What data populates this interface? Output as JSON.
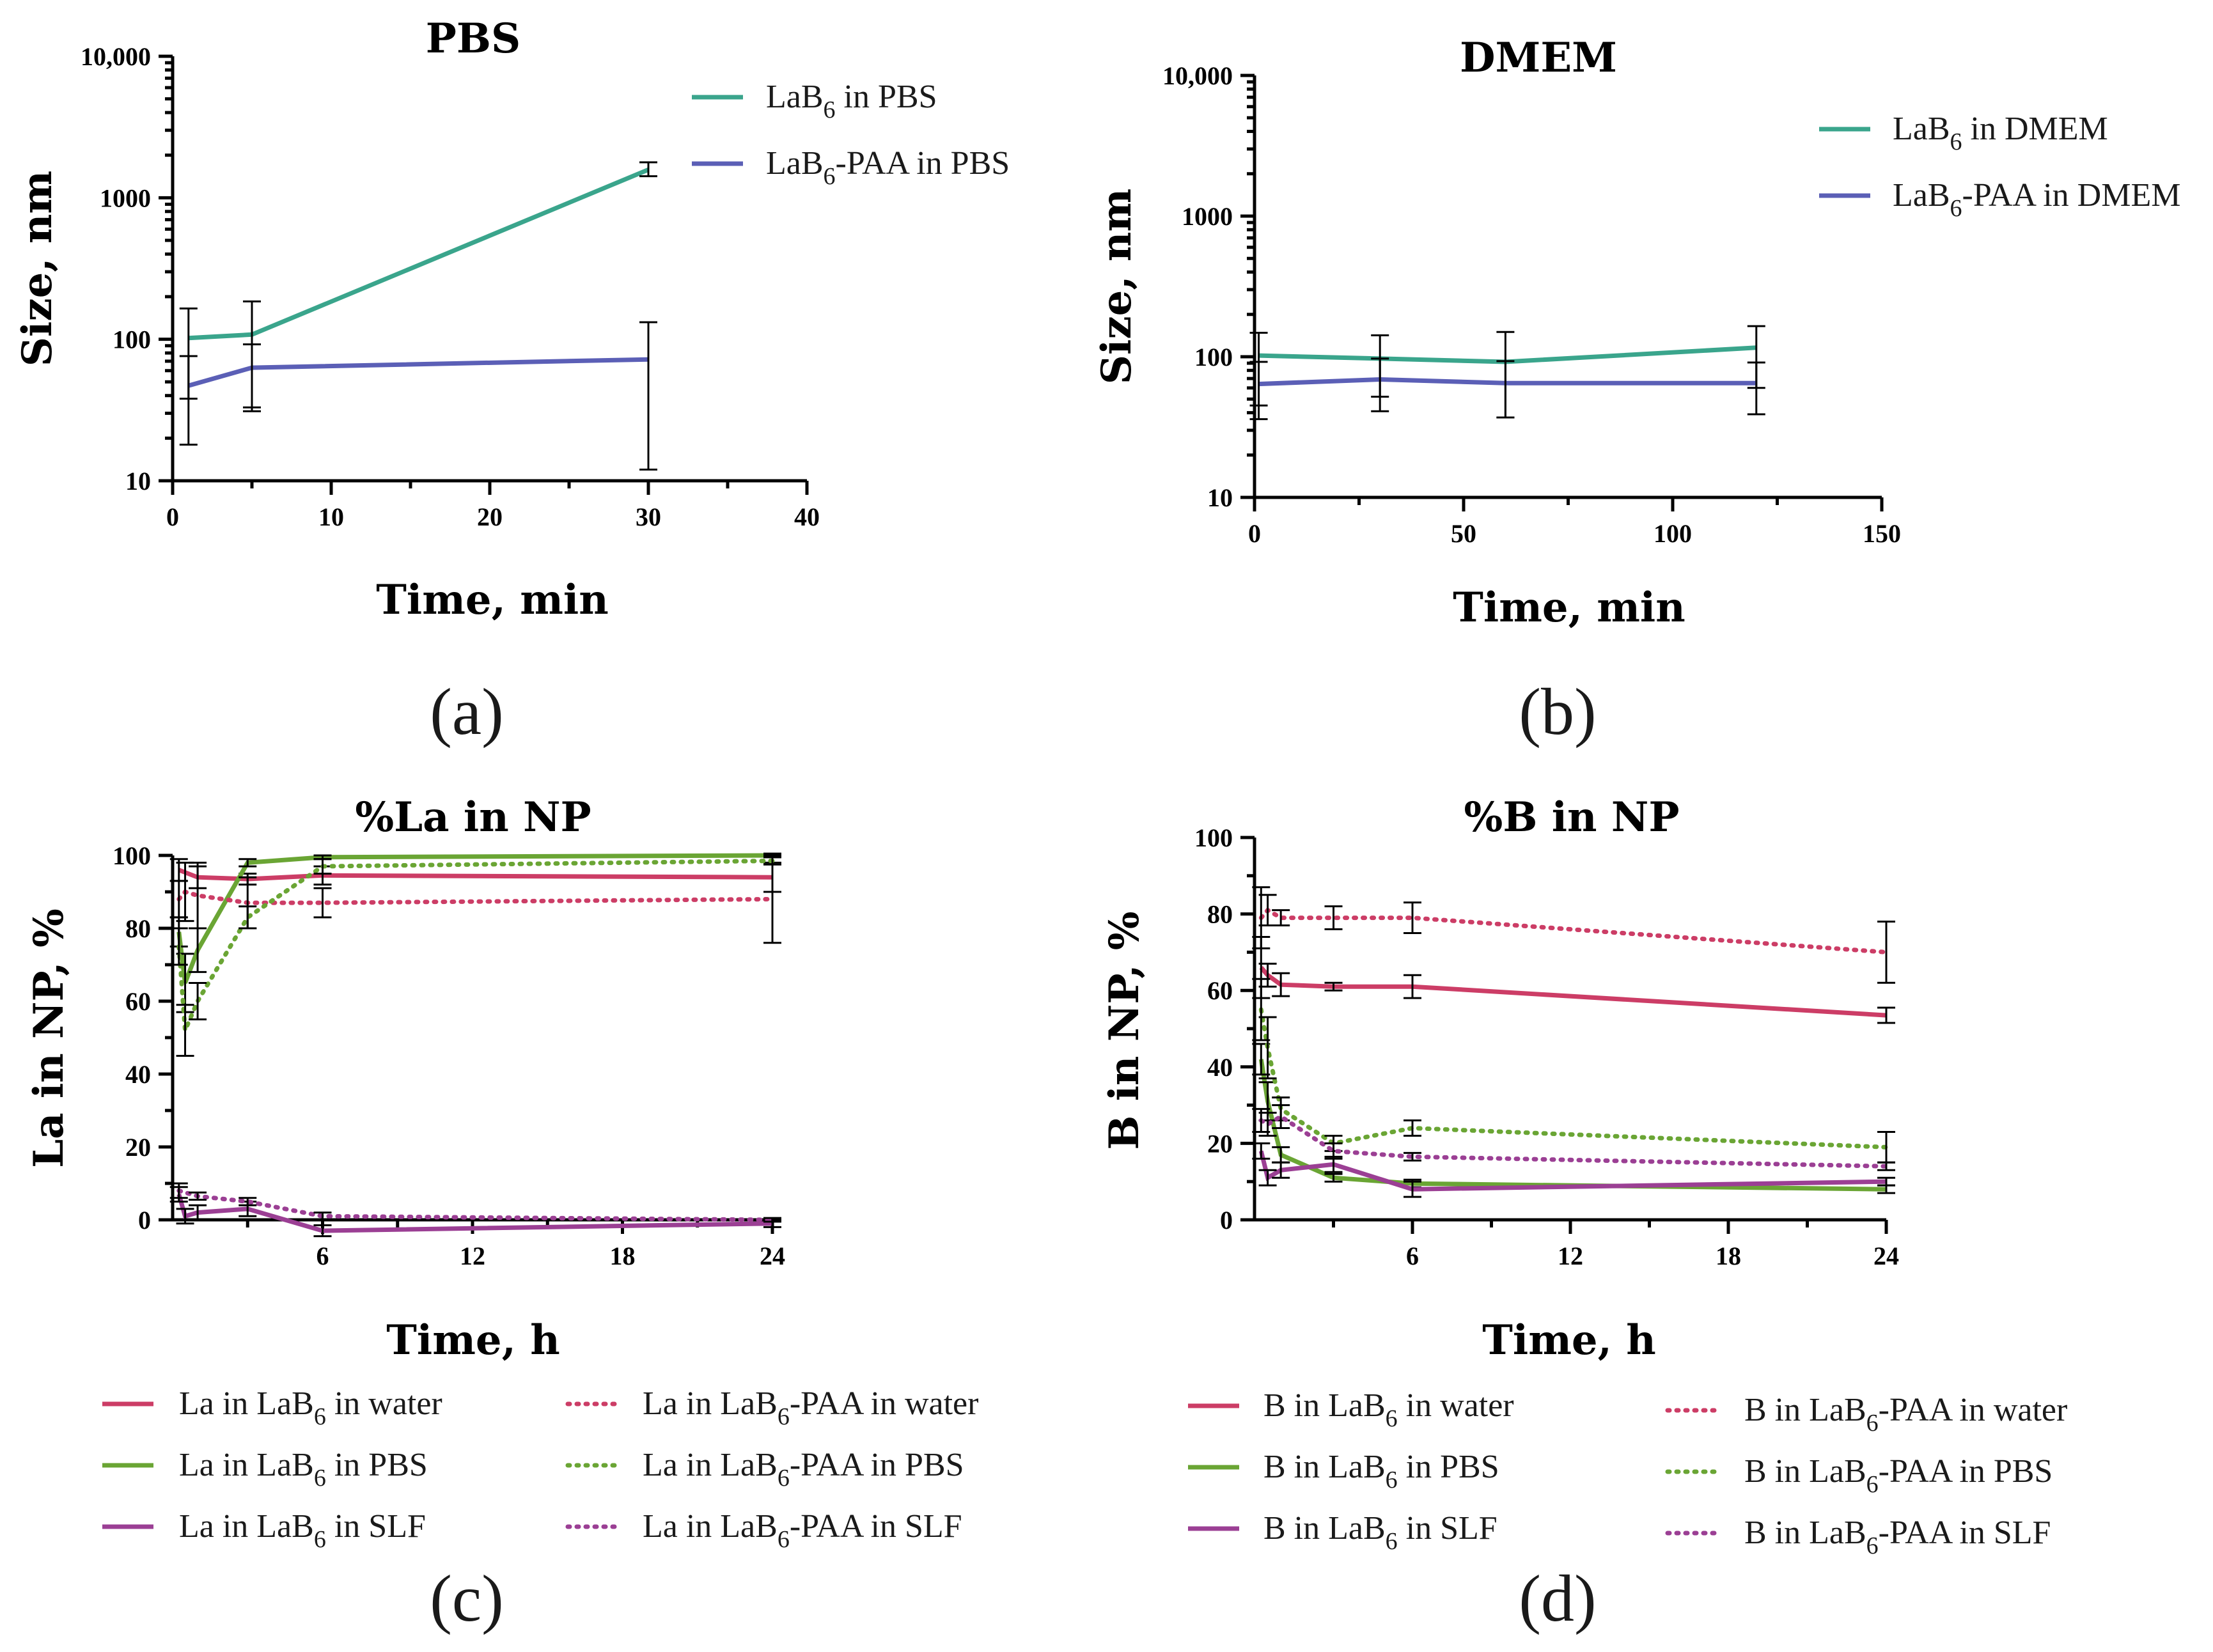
{
  "colors": {
    "teal": "#3aa58c",
    "blue": "#5b5fb6",
    "crimson": "#cc3d66",
    "green": "#6aa534",
    "purple": "#9b3f94",
    "axis": "#000000"
  },
  "chart_data": [
    {
      "id": "a",
      "type": "line",
      "panel_label": "(a)",
      "title": "PBS",
      "xlabel": "Time, min",
      "ylabel": "Size, nm",
      "yscale": "log",
      "xlim": [
        0,
        40
      ],
      "ylim": [
        10,
        10000
      ],
      "xticks": [
        0,
        10,
        20,
        30,
        40
      ],
      "xtick_labels": [
        "0",
        "10",
        "20",
        "30",
        "40"
      ],
      "yticks": [
        10,
        100,
        1000,
        10000
      ],
      "ytick_labels": [
        "10",
        "100",
        "1000",
        "10,000"
      ],
      "legend_position": "top-right",
      "series": [
        {
          "name": "LaB6 in PBS",
          "legend_base": "LaB",
          "legend_sub": "6",
          "legend_rest": " in PBS",
          "color": "teal",
          "dash": "solid",
          "x": [
            1,
            5,
            30
          ],
          "y": [
            102,
            108,
            1580
          ],
          "err_low": [
            38,
            33,
            1420
          ],
          "err_high": [
            165,
            185,
            1780
          ]
        },
        {
          "name": "LaB6-PAA in PBS",
          "legend_base": "LaB",
          "legend_sub": "6",
          "legend_rest": "-PAA in PBS",
          "color": "blue",
          "dash": "solid",
          "x": [
            1,
            5,
            30
          ],
          "y": [
            47,
            63,
            72
          ],
          "err_low": [
            18,
            31,
            12
          ],
          "err_high": [
            76,
            92,
            132
          ]
        }
      ]
    },
    {
      "id": "b",
      "type": "line",
      "panel_label": "(b)",
      "title": "DMEM",
      "xlabel": "Time, min",
      "ylabel": "Size, nm",
      "yscale": "log",
      "xlim": [
        0,
        150
      ],
      "ylim": [
        10,
        10000
      ],
      "xticks": [
        0,
        50,
        100,
        150
      ],
      "xtick_labels": [
        "0",
        "50",
        "100",
        "150"
      ],
      "yticks": [
        10,
        100,
        1000,
        10000
      ],
      "ytick_labels": [
        "10",
        "100",
        "1000",
        "10,000"
      ],
      "legend_position": "top-right",
      "series": [
        {
          "name": "LaB6 in DMEM",
          "legend_base": "LaB",
          "legend_sub": "6",
          "legend_rest": " in DMEM",
          "color": "teal",
          "dash": "solid",
          "x": [
            1,
            30,
            60,
            120
          ],
          "y": [
            102,
            97,
            92,
            116
          ],
          "err_low": [
            45,
            52,
            37,
            60
          ],
          "err_high": [
            148,
            142,
            150,
            165
          ]
        },
        {
          "name": "LaB6-PAA in DMEM",
          "legend_base": "LaB",
          "legend_sub": "6",
          "legend_rest": "-PAA in DMEM",
          "color": "blue",
          "dash": "solid",
          "x": [
            1,
            30,
            60,
            120
          ],
          "y": [
            64,
            69,
            65,
            65
          ],
          "err_low": [
            36,
            41,
            37,
            39
          ],
          "err_high": [
            92,
            97,
            93,
            91
          ]
        }
      ]
    },
    {
      "id": "c",
      "type": "line",
      "panel_label": "(c)",
      "title": "%La in NP",
      "xlabel": "Time, h",
      "ylabel": "La in NP, %",
      "yscale": "linear",
      "xlim": [
        0,
        24
      ],
      "ylim": [
        0,
        100
      ],
      "xticks": [
        6,
        12,
        18,
        24
      ],
      "xtick_labels": [
        "6",
        "12",
        "18",
        "24"
      ],
      "yticks": [
        0,
        20,
        40,
        60,
        80,
        100
      ],
      "ytick_labels": [
        "0",
        "20",
        "40",
        "60",
        "80",
        "100"
      ],
      "legend_position": "below",
      "series": [
        {
          "name": "La in LaB6 in water",
          "legend_base": "La in LaB",
          "legend_sub": "6",
          "legend_rest": " in water",
          "color": "crimson",
          "dash": "solid",
          "x": [
            0.25,
            1,
            3,
            6,
            24
          ],
          "y": [
            96,
            94,
            93.5,
            94.5,
            94
          ],
          "err": [
            3,
            3,
            1.5,
            2.5,
            4
          ]
        },
        {
          "name": "La in LaB6 in PBS",
          "legend_base": "La in LaB",
          "legend_sub": "6",
          "legend_rest": " in PBS",
          "color": "green",
          "dash": "solid",
          "x": [
            0.25,
            0.5,
            1,
            3,
            6,
            24
          ],
          "y": [
            79,
            65,
            74,
            98,
            99.5,
            100
          ],
          "err": [
            4,
            8,
            6,
            1,
            0.5,
            0.5
          ]
        },
        {
          "name": "La in LaB6 in SLF",
          "legend_base": "La in LaB",
          "legend_sub": "6",
          "legend_rest": " in SLF",
          "color": "purple",
          "dash": "solid",
          "x": [
            0.25,
            0.5,
            1,
            3,
            6,
            24
          ],
          "y": [
            7,
            1,
            2,
            3,
            -3,
            -1
          ],
          "err": [
            2,
            2,
            2,
            2,
            1.5,
            1
          ]
        },
        {
          "name": "La in LaB6-PAA in water",
          "legend_base": "La in LaB",
          "legend_sub": "6",
          "legend_rest": "-PAA in water",
          "color": "crimson",
          "dash": "dotted",
          "x": [
            0.25,
            0.5,
            1,
            3,
            6,
            24
          ],
          "y": [
            88,
            90,
            89,
            87,
            87,
            88
          ],
          "err": [
            5,
            8,
            9,
            7,
            4,
            12
          ]
        },
        {
          "name": "La in LaB6-PAA in PBS",
          "legend_base": "La in LaB",
          "legend_sub": "6",
          "legend_rest": "-PAA in PBS",
          "color": "green",
          "dash": "dotted",
          "x": [
            0.25,
            0.5,
            1,
            3,
            6,
            24
          ],
          "y": [
            75,
            52,
            60,
            83,
            97,
            98.5
          ],
          "err": [
            5,
            7,
            5,
            3,
            2,
            1
          ]
        },
        {
          "name": "La in LaB6-PAA in SLF",
          "legend_base": "La in LaB",
          "legend_sub": "6",
          "legend_rest": "-PAA in SLF",
          "color": "purple",
          "dash": "dotted",
          "x": [
            0.25,
            1,
            3,
            6,
            24
          ],
          "y": [
            8,
            6.5,
            5,
            1,
            0
          ],
          "err": [
            2,
            1,
            1,
            1,
            0.5
          ]
        }
      ]
    },
    {
      "id": "d",
      "type": "line",
      "panel_label": "(d)",
      "title": "%B in NP",
      "xlabel": "Time, h",
      "ylabel": "B in NP, %",
      "yscale": "linear",
      "xlim": [
        0,
        24
      ],
      "ylim": [
        0,
        100
      ],
      "xticks": [
        6,
        12,
        18,
        24
      ],
      "xtick_labels": [
        "6",
        "12",
        "18",
        "24"
      ],
      "yticks": [
        0,
        20,
        40,
        60,
        80,
        100
      ],
      "ytick_labels": [
        "0",
        "20",
        "40",
        "60",
        "80",
        "100"
      ],
      "legend_position": "below",
      "series": [
        {
          "name": "B in LaB6 in water",
          "legend_base": "B in LaB",
          "legend_sub": "6",
          "legend_rest": " in water",
          "color": "crimson",
          "dash": "solid",
          "x": [
            0.25,
            0.5,
            1,
            3,
            6,
            24
          ],
          "y": [
            66,
            64,
            61.5,
            61,
            61,
            53.5
          ],
          "err": [
            8,
            3,
            3,
            1,
            3,
            2
          ]
        },
        {
          "name": "B in LaB6 in PBS",
          "legend_base": "B in LaB",
          "legend_sub": "6",
          "legend_rest": " in PBS",
          "color": "green",
          "dash": "solid",
          "x": [
            0.25,
            0.5,
            1,
            3,
            6,
            24
          ],
          "y": [
            42,
            31,
            17,
            11,
            9.5,
            8
          ],
          "err": [
            4,
            5,
            2,
            1,
            1,
            1
          ]
        },
        {
          "name": "B in LaB6 in SLF",
          "legend_base": "B in LaB",
          "legend_sub": "6",
          "legend_rest": " in SLF",
          "color": "purple",
          "dash": "solid",
          "x": [
            0.25,
            0.5,
            1,
            3,
            6,
            24
          ],
          "y": [
            18,
            11,
            13,
            14.5,
            8,
            10
          ],
          "err": [
            2,
            2,
            2,
            2,
            2,
            1
          ]
        },
        {
          "name": "B in LaB6-PAA in water",
          "legend_base": "B in LaB",
          "legend_sub": "6",
          "legend_rest": "-PAA in water",
          "color": "crimson",
          "dash": "dotted",
          "x": [
            0.25,
            0.5,
            1,
            3,
            6,
            24
          ],
          "y": [
            79,
            81,
            79,
            79,
            79,
            70
          ],
          "err": [
            8,
            4,
            2,
            3,
            4,
            8
          ]
        },
        {
          "name": "B in LaB6-PAA in PBS",
          "legend_base": "B in LaB",
          "legend_sub": "6",
          "legend_rest": "-PAA in PBS",
          "color": "green",
          "dash": "dotted",
          "x": [
            0.25,
            0.5,
            1,
            3,
            6,
            24
          ],
          "y": [
            55,
            45,
            29,
            20,
            24,
            19
          ],
          "err": [
            8,
            8,
            3,
            2,
            2,
            4
          ]
        },
        {
          "name": "B in LaB6-PAA in SLF",
          "legend_base": "B in LaB",
          "legend_sub": "6",
          "legend_rest": "-PAA in SLF",
          "color": "purple",
          "dash": "dotted",
          "x": [
            0.25,
            0.5,
            1,
            3,
            6,
            24
          ],
          "y": [
            26,
            25,
            27,
            18,
            16.5,
            14
          ],
          "err": [
            3,
            3,
            3,
            2,
            1,
            1
          ]
        }
      ]
    }
  ]
}
